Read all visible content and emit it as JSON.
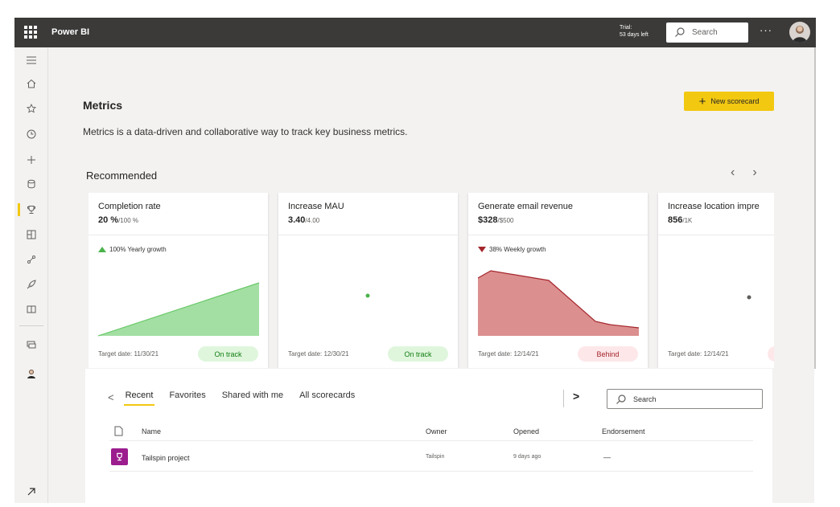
{
  "app": {
    "brand": "Power BI",
    "trial_line1": "Trial:",
    "trial_line2": "53 days left",
    "search_placeholder": "Search",
    "more": "···"
  },
  "page": {
    "title": "Metrics",
    "subtitle": "Metrics is a data-driven and collaborative way to track key business metrics.",
    "new_scorecard": "New scorecard",
    "recommended": "Recommended",
    "prev_arrow": "‹",
    "next_arrow": "›"
  },
  "cards": [
    {
      "title": "Completion rate",
      "value": "20 %",
      "target": "/100 %",
      "trend": "100% Yearly growth",
      "trend_dir": "up",
      "target_date": "Target date: 11/30/21",
      "status": "On track"
    },
    {
      "title": "Increase MAU",
      "value": "3.40",
      "target": "/4.00",
      "trend": "",
      "trend_dir": "",
      "target_date": "Target date: 12/30/21",
      "status": "On track"
    },
    {
      "title": "Generate email revenue",
      "value": "$328",
      "target": "/$500",
      "trend": "38% Weekly growth",
      "trend_dir": "down",
      "target_date": "Target date: 12/14/21",
      "status": "Behind"
    },
    {
      "title": "Increase location impre",
      "value": "856",
      "target": "/1K",
      "trend": "",
      "trend_dir": "",
      "target_date": "Target date: 12/14/21",
      "status": ""
    }
  ],
  "list": {
    "prev": "<",
    "tabs": [
      "Recent",
      "Favorites",
      "Shared with me",
      "All scorecards"
    ],
    "next": ">",
    "search_placeholder": "Search",
    "columns": {
      "name": "Name",
      "owner": "Owner",
      "opened": "Opened",
      "endorsement": "Endorsement"
    },
    "rows": [
      {
        "name": "Tailspin project",
        "owner": "Tailspin",
        "opened": "9 days ago",
        "endorsement": "—"
      }
    ]
  },
  "colors": {
    "accent": "#f2c811",
    "topbar": "#3b3a39",
    "on_track": "#107c10",
    "behind": "#a4262c",
    "scorecard_icon": "#9b1d8e"
  }
}
